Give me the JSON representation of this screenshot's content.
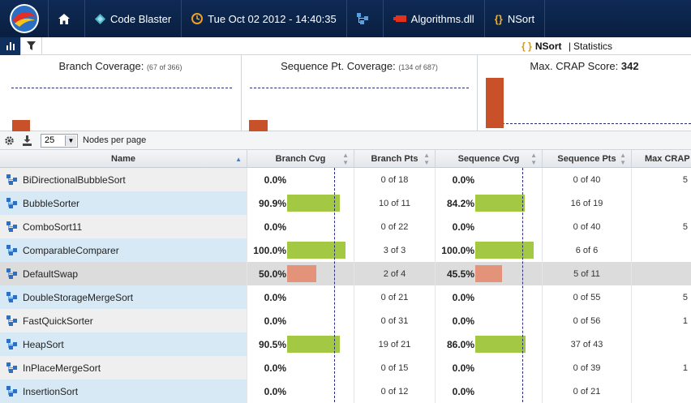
{
  "topbar": {
    "crumbs": [
      {
        "label": ""
      },
      {
        "label": "Code Blaster"
      },
      {
        "label": "Tue Oct 02 2012 - 14:40:35"
      },
      {
        "label": ""
      },
      {
        "label": "Algorithms.dll"
      },
      {
        "label": "NSort"
      }
    ]
  },
  "subbar": {
    "brace": "{ }",
    "name": "NSort",
    "separator": "|",
    "section": "Statistics"
  },
  "panels": {
    "branch": {
      "title": "Branch Coverage:",
      "detail": "(67 of 366)"
    },
    "sequence": {
      "title": "Sequence Pt. Coverage:",
      "detail": "(134 of 687)"
    },
    "crap": {
      "title": "Max. CRAP Score:",
      "value": "342"
    }
  },
  "grid": {
    "page_size": "25",
    "page_size_label": "Nodes per page"
  },
  "columns": [
    "Name",
    "Branch Cvg",
    "Branch Pts",
    "Sequence Cvg",
    "Sequence Pts",
    "Max CRAP"
  ],
  "rows": [
    {
      "name": "BiDirectionalBubbleSort",
      "branch_cvg": "0.0%",
      "branch_val": 0.0,
      "branch_pts": "0 of 18",
      "seq_cvg": "0.0%",
      "seq_val": 0.0,
      "seq_pts": "0 of 40",
      "crap": "5"
    },
    {
      "name": "BubbleSorter",
      "branch_cvg": "90.9%",
      "branch_val": 90.9,
      "branch_pts": "10 of 11",
      "seq_cvg": "84.2%",
      "seq_val": 84.2,
      "seq_pts": "16 of 19",
      "crap": ""
    },
    {
      "name": "ComboSort11",
      "branch_cvg": "0.0%",
      "branch_val": 0.0,
      "branch_pts": "0 of 22",
      "seq_cvg": "0.0%",
      "seq_val": 0.0,
      "seq_pts": "0 of 40",
      "crap": "5"
    },
    {
      "name": "ComparableComparer",
      "branch_cvg": "100.0%",
      "branch_val": 100.0,
      "branch_pts": "3 of 3",
      "seq_cvg": "100.0%",
      "seq_val": 100.0,
      "seq_pts": "6 of 6",
      "crap": ""
    },
    {
      "name": "DefaultSwap",
      "branch_cvg": "50.0%",
      "branch_val": 50.0,
      "branch_pts": "2 of 4",
      "seq_cvg": "45.5%",
      "seq_val": 45.5,
      "seq_pts": "5 of 11",
      "crap": ""
    },
    {
      "name": "DoubleStorageMergeSort",
      "branch_cvg": "0.0%",
      "branch_val": 0.0,
      "branch_pts": "0 of 21",
      "seq_cvg": "0.0%",
      "seq_val": 0.0,
      "seq_pts": "0 of 55",
      "crap": "5"
    },
    {
      "name": "FastQuickSorter",
      "branch_cvg": "0.0%",
      "branch_val": 0.0,
      "branch_pts": "0 of 31",
      "seq_cvg": "0.0%",
      "seq_val": 0.0,
      "seq_pts": "0 of 56",
      "crap": "1"
    },
    {
      "name": "HeapSort",
      "branch_cvg": "90.5%",
      "branch_val": 90.5,
      "branch_pts": "19 of 21",
      "seq_cvg": "86.0%",
      "seq_val": 86.0,
      "seq_pts": "37 of 43",
      "crap": ""
    },
    {
      "name": "InPlaceMergeSort",
      "branch_cvg": "0.0%",
      "branch_val": 0.0,
      "branch_pts": "0 of 15",
      "seq_cvg": "0.0%",
      "seq_val": 0.0,
      "seq_pts": "0 of 39",
      "crap": "1"
    },
    {
      "name": "InsertionSort",
      "branch_cvg": "0.0%",
      "branch_val": 0.0,
      "branch_pts": "0 of 12",
      "seq_cvg": "0.0%",
      "seq_val": 0.0,
      "seq_pts": "0 of 21",
      "crap": ""
    }
  ],
  "colors": {
    "good": "#a3c844",
    "warn": "#e39379",
    "crap_bar": "#c8512a"
  }
}
